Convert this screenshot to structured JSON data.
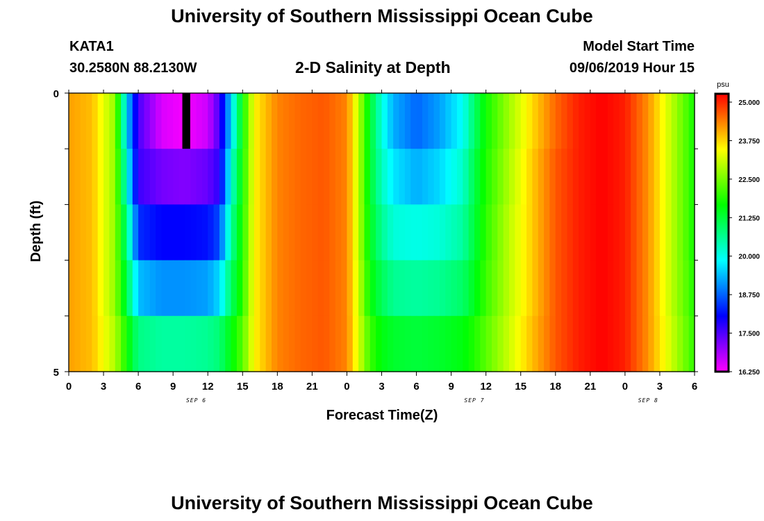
{
  "header": {
    "title": "University of Southern Mississippi Ocean Cube",
    "station": "KATA1",
    "coords": "30.2580N 88.2130W",
    "subtitle": "2-D Salinity at Depth",
    "model_start_label": "Model Start Time",
    "model_start_value": "09/06/2019 Hour 15"
  },
  "footer": {
    "title": "University of Southern Mississippi Ocean Cube"
  },
  "chart_data": {
    "type": "heatmap",
    "title": "2-D Salinity at Depth",
    "xlabel": "Forecast Time(Z)",
    "ylabel": "Depth (ft)",
    "x_tick_labels": [
      "0",
      "3",
      "6",
      "9",
      "12",
      "15",
      "18",
      "21",
      "0",
      "3",
      "6",
      "9",
      "12",
      "15",
      "18",
      "21",
      "0",
      "3",
      "6"
    ],
    "x_range_hours": [
      0,
      54
    ],
    "date_labels": [
      {
        "label": "SEP 6",
        "hour": 11
      },
      {
        "label": "SEP 7",
        "hour": 35
      },
      {
        "label": "SEP 8",
        "hour": 50
      }
    ],
    "y_tick_labels": [
      "0",
      "5"
    ],
    "y_range": [
      0,
      5
    ],
    "depth_rows": 5,
    "colorbar": {
      "unit": "psu",
      "min": 16.25,
      "max": 25.0,
      "tick_labels": [
        "25.000",
        "23.750",
        "22.500",
        "21.250",
        "20.000",
        "18.750",
        "17.500",
        "16.250"
      ],
      "tick_values": [
        25.0,
        23.75,
        22.5,
        21.25,
        20.0,
        18.75,
        17.5,
        16.25
      ]
    },
    "anomaly_time_range_hours": [
      9.8,
      10.3
    ],
    "value_columns": [
      {
        "hours": [
          0,
          2,
          4,
          5,
          6,
          8,
          10,
          12,
          13,
          14,
          15,
          16,
          18,
          20,
          22,
          24,
          25,
          26,
          27,
          28,
          30,
          32,
          34,
          35,
          36,
          38,
          40,
          42,
          44,
          46,
          48,
          50,
          52,
          54
        ],
        "surface": [
          23.9,
          23.7,
          22.5,
          19.5,
          17.5,
          16.5,
          16.3,
          16.6,
          17.5,
          19.5,
          21.5,
          23.3,
          24.1,
          24.3,
          24.4,
          24.1,
          22.8,
          21.2,
          20.0,
          19.2,
          18.7,
          19.1,
          19.8,
          20.8,
          21.6,
          22.6,
          23.5,
          24.3,
          24.8,
          25.0,
          24.8,
          24.0,
          22.8,
          21.6
        ],
        "row2": [
          23.9,
          23.7,
          22.5,
          20.0,
          17.6,
          17.2,
          17.1,
          17.3,
          17.7,
          20.0,
          21.6,
          23.3,
          24.1,
          24.3,
          24.4,
          24.1,
          22.8,
          21.2,
          20.2,
          19.6,
          19.2,
          19.5,
          20.1,
          21.0,
          21.7,
          22.7,
          23.6,
          24.4,
          24.8,
          25.0,
          24.8,
          24.0,
          22.8,
          21.6
        ],
        "row3": [
          23.9,
          23.7,
          22.5,
          20.6,
          18.3,
          18.0,
          18.0,
          18.1,
          18.5,
          20.4,
          21.7,
          23.3,
          24.1,
          24.3,
          24.4,
          24.1,
          22.8,
          21.3,
          20.5,
          20.0,
          19.9,
          20.0,
          20.4,
          21.1,
          21.8,
          22.8,
          23.6,
          24.4,
          24.8,
          25.0,
          24.8,
          24.0,
          22.8,
          21.6
        ],
        "row4": [
          23.9,
          23.7,
          22.5,
          21.0,
          19.3,
          19.0,
          19.0,
          19.1,
          19.5,
          20.8,
          21.8,
          23.3,
          24.1,
          24.3,
          24.4,
          24.1,
          22.9,
          21.5,
          20.9,
          20.5,
          20.4,
          20.5,
          20.8,
          21.3,
          21.9,
          22.8,
          23.6,
          24.4,
          24.8,
          25.0,
          24.8,
          24.0,
          22.8,
          21.7
        ],
        "row5": [
          23.9,
          23.7,
          22.7,
          21.6,
          20.6,
          20.4,
          20.4,
          20.5,
          20.7,
          21.4,
          22.1,
          23.3,
          24.1,
          24.3,
          24.4,
          24.1,
          23.0,
          21.9,
          21.4,
          21.2,
          21.1,
          21.2,
          21.4,
          21.7,
          22.1,
          22.9,
          23.7,
          24.4,
          24.8,
          25.0,
          24.8,
          24.0,
          22.9,
          21.8
        ]
      }
    ]
  }
}
